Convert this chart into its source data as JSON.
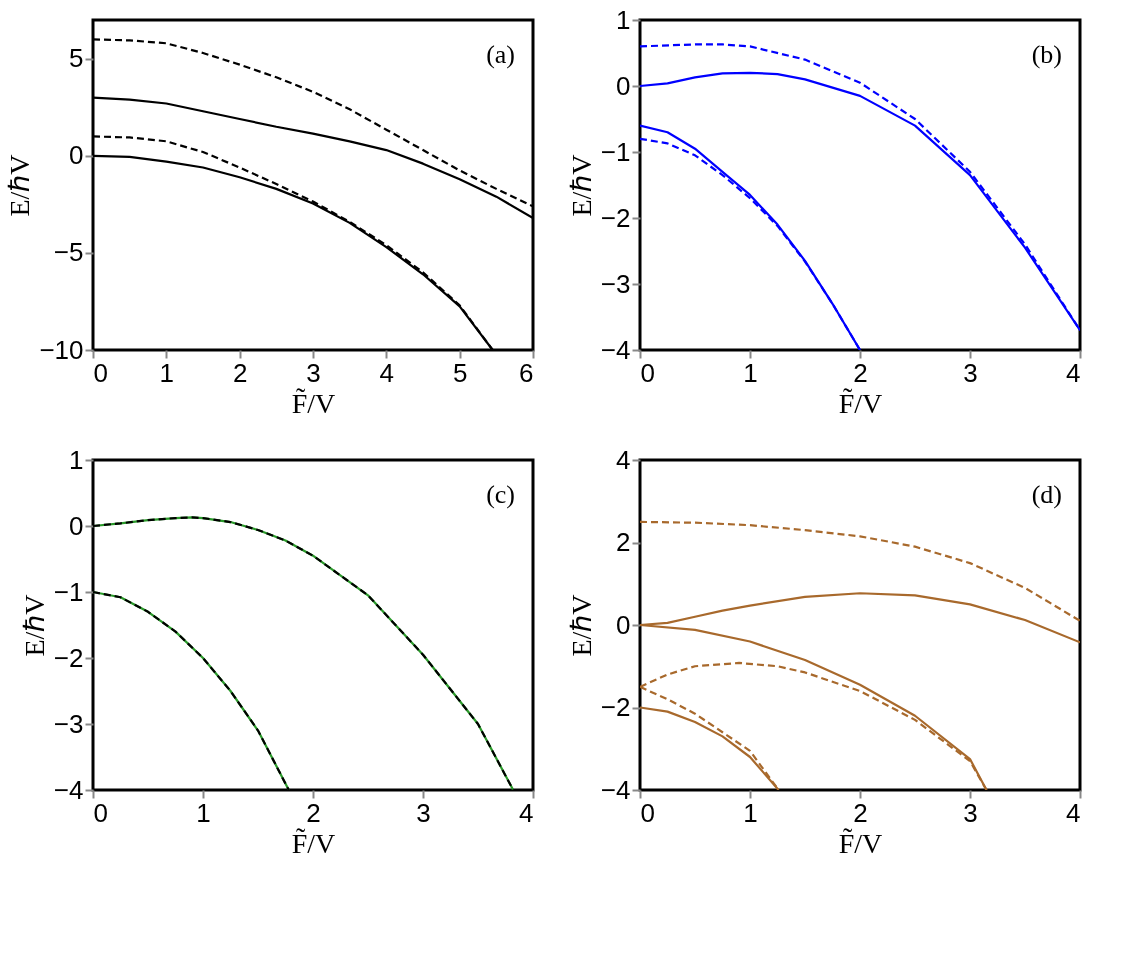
{
  "chart_data": [
    {
      "type": "line",
      "xlabel": "F̃/V",
      "ylabel": "E/ℏV",
      "annotations": [
        "(a)"
      ],
      "xlim": [
        0,
        6
      ],
      "ylim": [
        -10,
        7
      ],
      "xticks": [
        0,
        1,
        2,
        3,
        4,
        5,
        6
      ],
      "yticks": [
        -10,
        -5,
        0,
        5
      ],
      "grid": false,
      "series": [
        {
          "color": "#000000",
          "line_style": "dashed",
          "x": [
            0,
            0.5,
            1,
            1.5,
            2,
            2.5,
            3,
            3.5,
            4,
            4.5,
            5,
            5.5,
            6
          ],
          "values": [
            6,
            5.95,
            5.8,
            5.3,
            4.7,
            4.05,
            3.3,
            2.4,
            1.35,
            0.3,
            -0.75,
            -1.7,
            -2.6
          ]
        },
        {
          "color": "#000000",
          "line_style": "solid",
          "x": [
            0,
            0.5,
            1,
            1.5,
            2,
            2.5,
            3,
            3.5,
            4,
            4.5,
            5,
            5.5,
            6
          ],
          "values": [
            3,
            2.9,
            2.7,
            2.3,
            1.9,
            1.5,
            1.15,
            0.75,
            0.3,
            -0.4,
            -1.2,
            -2.1,
            -3.2
          ]
        },
        {
          "color": "#000000",
          "line_style": "dashed",
          "x": [
            0,
            0.5,
            1,
            1.5,
            2,
            2.5,
            3,
            3.5,
            4,
            4.5,
            5,
            5.45
          ],
          "values": [
            1,
            0.95,
            0.75,
            0.2,
            -0.6,
            -1.45,
            -2.35,
            -3.4,
            -4.6,
            -6,
            -7.7,
            -10
          ]
        },
        {
          "color": "#000000",
          "line_style": "solid",
          "x": [
            0,
            0.5,
            1,
            1.5,
            2,
            2.5,
            3,
            3.5,
            4,
            4.5,
            5,
            5.45
          ],
          "values": [
            0,
            -0.05,
            -0.3,
            -0.6,
            -1.1,
            -1.7,
            -2.45,
            -3.45,
            -4.7,
            -6.1,
            -7.75,
            -10
          ]
        }
      ]
    },
    {
      "type": "line",
      "xlabel": "F̃/V",
      "ylabel": "E/ℏV",
      "annotations": [
        "(b)"
      ],
      "xlim": [
        0,
        4
      ],
      "ylim": [
        -4,
        1
      ],
      "xticks": [
        0,
        1,
        2,
        3,
        4
      ],
      "yticks": [
        -4,
        -3,
        -2,
        -1,
        0,
        1
      ],
      "grid": false,
      "series": [
        {
          "color": "#0000ff",
          "line_style": "dashed",
          "x": [
            0,
            0.5,
            0.75,
            1,
            1.5,
            2,
            2.5,
            3,
            3.5,
            4
          ],
          "values": [
            0.6,
            0.63,
            0.63,
            0.6,
            0.4,
            0.05,
            -0.5,
            -1.3,
            -2.4,
            -3.7
          ]
        },
        {
          "color": "#0000ff",
          "line_style": "solid",
          "x": [
            0,
            0.25,
            0.5,
            0.75,
            1,
            1.25,
            1.5,
            2,
            2.5,
            3,
            3.5,
            4
          ],
          "values": [
            0,
            0.04,
            0.13,
            0.19,
            0.2,
            0.18,
            0.1,
            -0.15,
            -0.6,
            -1.35,
            -2.45,
            -3.7
          ]
        },
        {
          "color": "#0000ff",
          "line_style": "solid",
          "x": [
            0,
            0.25,
            0.5,
            0.75,
            1,
            1.25,
            1.5,
            1.75,
            2
          ],
          "values": [
            -0.6,
            -0.7,
            -0.95,
            -1.3,
            -1.65,
            -2.1,
            -2.65,
            -3.3,
            -4
          ]
        },
        {
          "color": "#0000ff",
          "line_style": "dashed",
          "x": [
            0,
            0.25,
            0.5,
            0.75,
            1,
            1.25,
            1.5,
            1.75,
            2
          ],
          "values": [
            -0.8,
            -0.87,
            -1.05,
            -1.35,
            -1.7,
            -2.12,
            -2.66,
            -3.3,
            -4
          ]
        }
      ]
    },
    {
      "type": "line",
      "xlabel": "F̃/V",
      "ylabel": "E/ℏV",
      "annotations": [
        "(c)"
      ],
      "xlim": [
        0,
        4
      ],
      "ylim": [
        -4,
        1
      ],
      "xticks": [
        0,
        1,
        2,
        3,
        4
      ],
      "yticks": [
        -4,
        -3,
        -2,
        -1,
        0,
        1
      ],
      "grid": false,
      "series": [
        {
          "color": "#2a9a2a",
          "line_style": "solid",
          "x": [
            0,
            0.25,
            0.5,
            0.75,
            0.9,
            1,
            1.25,
            1.5,
            1.75,
            2,
            2.5,
            3,
            3.5,
            3.82
          ],
          "values": [
            0,
            0.04,
            0.09,
            0.12,
            0.13,
            0.12,
            0.06,
            -0.06,
            -0.22,
            -0.45,
            -1.05,
            -1.95,
            -3.0,
            -4
          ]
        },
        {
          "color": "#2a9a2a",
          "line_style": "solid",
          "x": [
            0,
            0.25,
            0.5,
            0.75,
            1,
            1.25,
            1.5,
            1.78
          ],
          "values": [
            -1,
            -1.08,
            -1.3,
            -1.6,
            -2.0,
            -2.5,
            -3.1,
            -4
          ]
        },
        {
          "color": "#000000",
          "line_style": "dashed",
          "x": [
            0,
            0.25,
            0.5,
            0.75,
            0.9,
            1,
            1.25,
            1.5,
            1.75,
            2,
            2.5,
            3,
            3.5,
            3.82
          ],
          "values": [
            0,
            0.04,
            0.09,
            0.12,
            0.13,
            0.12,
            0.06,
            -0.06,
            -0.22,
            -0.45,
            -1.05,
            -1.95,
            -3.0,
            -4
          ]
        },
        {
          "color": "#000000",
          "line_style": "dashed",
          "x": [
            0,
            0.25,
            0.5,
            0.75,
            1,
            1.25,
            1.5,
            1.78
          ],
          "values": [
            -1,
            -1.08,
            -1.3,
            -1.6,
            -2.0,
            -2.5,
            -3.1,
            -4
          ]
        }
      ]
    },
    {
      "type": "line",
      "xlabel": "F̃/V",
      "ylabel": "E/ℏV",
      "annotations": [
        "(d)"
      ],
      "xlim": [
        0,
        4
      ],
      "ylim": [
        -4,
        4
      ],
      "xticks": [
        0,
        1,
        2,
        3,
        4
      ],
      "yticks": [
        -4,
        -2,
        0,
        2,
        4
      ],
      "grid": false,
      "series": [
        {
          "color": "#a8692c",
          "line_style": "dashed",
          "x": [
            0,
            0.5,
            1,
            1.5,
            2,
            2.5,
            3,
            3.5,
            4
          ],
          "values": [
            2.5,
            2.48,
            2.42,
            2.3,
            2.15,
            1.9,
            1.5,
            0.9,
            0.1
          ]
        },
        {
          "color": "#a8692c",
          "line_style": "solid",
          "x": [
            0,
            0.25,
            0.5,
            0.75,
            1,
            1.5,
            2,
            2.5,
            3,
            3.5,
            4
          ],
          "values": [
            0,
            0.05,
            0.2,
            0.35,
            0.47,
            0.68,
            0.77,
            0.72,
            0.5,
            0.12,
            -0.42
          ]
        },
        {
          "color": "#a8692c",
          "line_style": "solid",
          "x": [
            0,
            0.5,
            1,
            1.5,
            2,
            2.5,
            3,
            3.15
          ],
          "values": [
            0,
            -0.12,
            -0.4,
            -0.85,
            -1.45,
            -2.2,
            -3.25,
            -4
          ]
        },
        {
          "color": "#a8692c",
          "line_style": "dashed",
          "x": [
            0,
            0.25,
            0.5,
            0.9,
            1.25,
            1.5,
            2,
            2.5,
            3,
            3.15
          ],
          "values": [
            -1.5,
            -1.2,
            -1.0,
            -0.92,
            -1.0,
            -1.15,
            -1.6,
            -2.3,
            -3.3,
            -4
          ]
        },
        {
          "color": "#a8692c",
          "line_style": "dashed",
          "x": [
            0,
            0.25,
            0.5,
            0.75,
            1,
            1.26
          ],
          "values": [
            -1.5,
            -1.8,
            -2.15,
            -2.6,
            -3.05,
            -4
          ]
        },
        {
          "color": "#a8692c",
          "line_style": "solid",
          "x": [
            0,
            0.25,
            0.5,
            0.75,
            1,
            1.26
          ],
          "values": [
            -2,
            -2.1,
            -2.35,
            -2.7,
            -3.2,
            -4
          ]
        }
      ]
    }
  ]
}
